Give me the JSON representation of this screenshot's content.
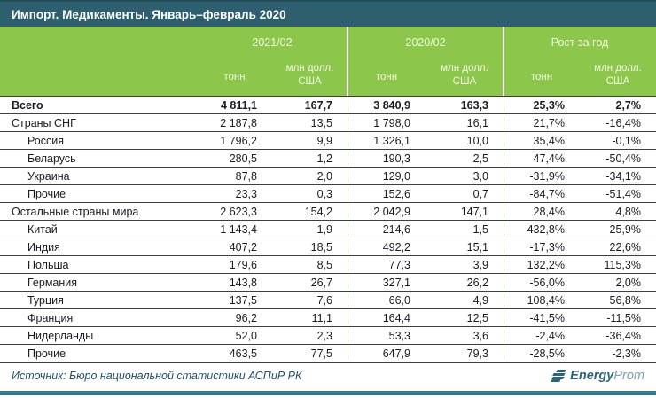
{
  "title": "Импорт. Медикаменты. Январь–февраль 2020",
  "header": {
    "groups": [
      {
        "label": "2021/02"
      },
      {
        "label": "2020/02"
      },
      {
        "label": "Рост за год"
      }
    ],
    "sub": {
      "tons": "тонн",
      "mln_line1": "млн долл.",
      "mln_line2": "США"
    }
  },
  "chart_data": {
    "type": "table",
    "title": "Импорт. Медикаменты. Январь–февраль 2020",
    "column_groups": [
      "2021/02",
      "2020/02",
      "Рост за год"
    ],
    "columns": [
      "2021/02 тонн",
      "2021/02 млн долл. США",
      "2020/02 тонн",
      "2020/02 млн долл. США",
      "Рост за год тонн",
      "Рост за год млн долл. США"
    ],
    "rows": [
      {
        "label": "Всего",
        "level": 0,
        "bold": true,
        "values": [
          "4 811,1",
          "167,7",
          "3 840,9",
          "163,3",
          "25,3%",
          "2,7%"
        ]
      },
      {
        "label": "Страны СНГ",
        "level": 1,
        "bold": false,
        "values": [
          "2 187,8",
          "13,5",
          "1 798,0",
          "16,1",
          "21,7%",
          "-16,4%"
        ]
      },
      {
        "label": "Россия",
        "level": 2,
        "bold": false,
        "values": [
          "1 796,2",
          "9,9",
          "1 326,1",
          "10,0",
          "35,4%",
          "-0,1%"
        ]
      },
      {
        "label": "Беларусь",
        "level": 2,
        "bold": false,
        "values": [
          "280,5",
          "1,2",
          "190,3",
          "2,5",
          "47,4%",
          "-50,4%"
        ]
      },
      {
        "label": "Украина",
        "level": 2,
        "bold": false,
        "values": [
          "87,8",
          "2,0",
          "129,0",
          "3,0",
          "-31,9%",
          "-34,1%"
        ]
      },
      {
        "label": "Прочие",
        "level": 2,
        "bold": false,
        "values": [
          "23,3",
          "0,3",
          "152,6",
          "0,7",
          "-84,7%",
          "-51,4%"
        ]
      },
      {
        "label": "Остальные страны мира",
        "level": 1,
        "bold": false,
        "values": [
          "2 623,3",
          "154,2",
          "2 042,9",
          "147,1",
          "28,4%",
          "4,8%"
        ]
      },
      {
        "label": "Китай",
        "level": 2,
        "bold": false,
        "values": [
          "1 143,4",
          "1,9",
          "214,6",
          "1,5",
          "432,8%",
          "25,9%"
        ]
      },
      {
        "label": "Индия",
        "level": 2,
        "bold": false,
        "values": [
          "407,2",
          "18,5",
          "492,2",
          "15,1",
          "-17,3%",
          "22,6%"
        ]
      },
      {
        "label": "Польша",
        "level": 2,
        "bold": false,
        "values": [
          "179,6",
          "8,5",
          "77,3",
          "3,9",
          "132,2%",
          "115,3%"
        ]
      },
      {
        "label": "Германия",
        "level": 2,
        "bold": false,
        "values": [
          "143,8",
          "26,7",
          "327,1",
          "26,2",
          "-56,0%",
          "2,0%"
        ]
      },
      {
        "label": "Турция",
        "level": 2,
        "bold": false,
        "values": [
          "137,5",
          "7,6",
          "66,0",
          "4,9",
          "108,4%",
          "56,8%"
        ]
      },
      {
        "label": "Франция",
        "level": 2,
        "bold": false,
        "values": [
          "96,2",
          "11,1",
          "164,4",
          "12,5",
          "-41,5%",
          "-11,5%"
        ]
      },
      {
        "label": "Нидерланды",
        "level": 2,
        "bold": false,
        "values": [
          "52,0",
          "2,3",
          "53,3",
          "3,6",
          "-2,4%",
          "-36,4%"
        ]
      },
      {
        "label": "Прочие",
        "level": 2,
        "bold": false,
        "values": [
          "463,5",
          "77,5",
          "647,9",
          "79,3",
          "-28,5%",
          "-2,3%"
        ]
      }
    ]
  },
  "footer": {
    "source": "Источник: Бюро национальной статистики АСПиР РК",
    "logo_energy": "Energy",
    "logo_prom": "Prom"
  },
  "colors": {
    "title_bar": "#2d5f6e",
    "header_green": "#8cc64a",
    "separator_green": "#c9e2a3",
    "row_border": "#3f3f3f",
    "source_text": "#1f4f6b",
    "bottom_bar": "#337d92",
    "logo_teal": "#2a6478"
  }
}
